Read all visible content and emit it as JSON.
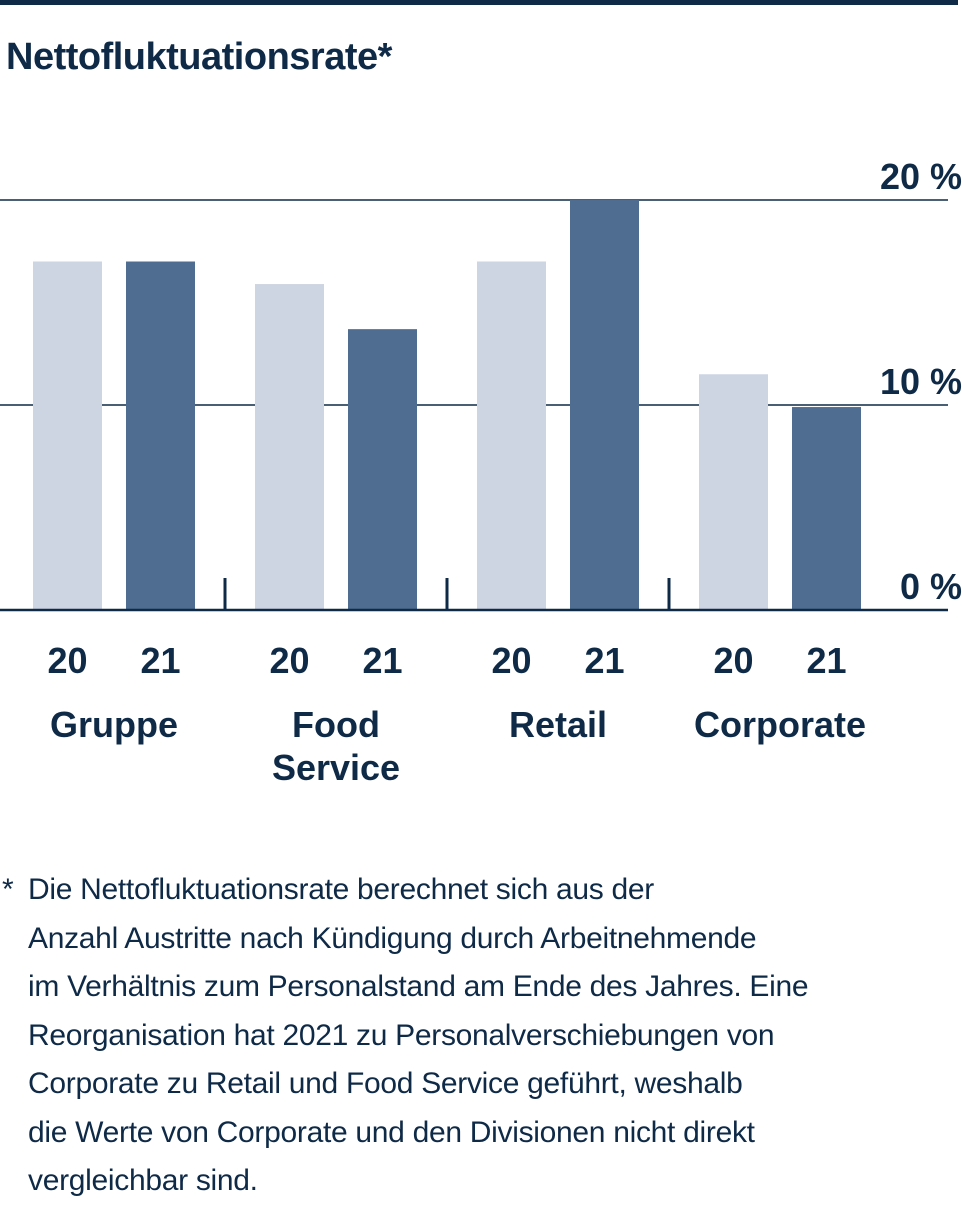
{
  "title": "Nettofluktuationsrate*",
  "colors": {
    "dark": "#0f2a47",
    "bar_2020": "#ced5e2",
    "bar_2021": "#4f6d90"
  },
  "chart_data": {
    "type": "bar",
    "title": "Nettofluktuationsrate*",
    "groups": [
      "Gruppe",
      "Food Service",
      "Retail",
      "Corporate"
    ],
    "group_labels": [
      [
        "Gruppe"
      ],
      [
        "Food",
        "Service"
      ],
      [
        "Retail"
      ],
      [
        "Corporate"
      ]
    ],
    "series": [
      {
        "name": "20",
        "values": [
          17.0,
          15.9,
          17.0,
          11.5
        ]
      },
      {
        "name": "21",
        "values": [
          17.0,
          13.7,
          20.0,
          9.9
        ]
      }
    ],
    "ylim": [
      0,
      20
    ],
    "yticks": [
      {
        "value": 0,
        "label": "0 %"
      },
      {
        "value": 10,
        "label": "10 %"
      },
      {
        "value": 20,
        "label": "20 %"
      }
    ],
    "grid": true,
    "xlabel": "",
    "ylabel": ""
  },
  "footnote": {
    "marker": "*",
    "lines": [
      "Die Nettofluktuationsrate berechnet sich aus der",
      "Anzahl Austritte nach Kündigung durch Arbeitnehmende",
      "im Verhältnis zum Personalstand am Ende des Jahres. Eine",
      "Reorganisation hat 2021 zu Personalverschiebungen von",
      "Corporate zu Retail und Food Service geführt, weshalb",
      "die Werte von Corporate und den Divisionen nicht direkt",
      "vergleichbar sind."
    ]
  }
}
